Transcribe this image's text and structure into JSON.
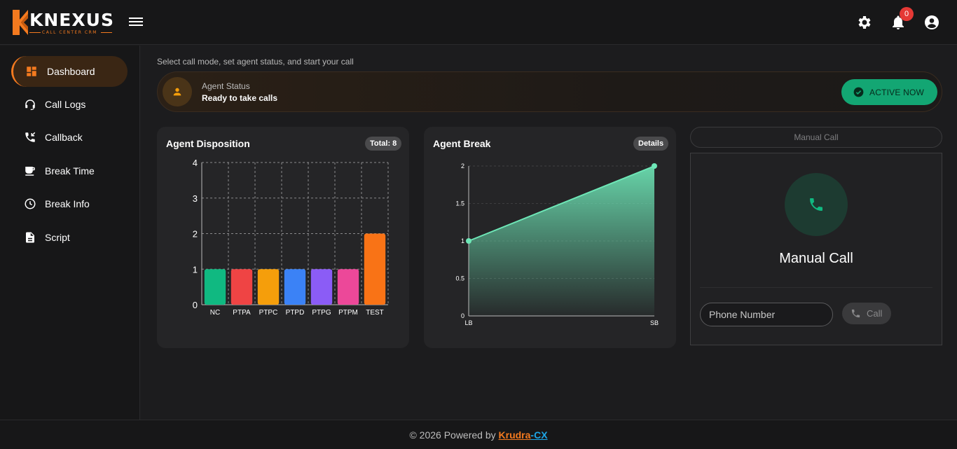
{
  "brand": {
    "name": "KNEXUS",
    "tagline": "CALL CENTER CRM",
    "accent": "#f47a1f"
  },
  "header": {
    "notifications_count": "0",
    "icons": [
      "menu-icon",
      "gear-icon",
      "bell-icon",
      "account-circle-icon"
    ]
  },
  "sidebar": {
    "items": [
      {
        "label": "Dashboard",
        "icon": "dashboard-icon",
        "active": true
      },
      {
        "label": "Call Logs",
        "icon": "headset-icon"
      },
      {
        "label": "Callback",
        "icon": "phone-callback-icon"
      },
      {
        "label": "Break Time",
        "icon": "coffee-icon"
      },
      {
        "label": "Break Info",
        "icon": "clock-icon"
      },
      {
        "label": "Script",
        "icon": "document-icon"
      }
    ]
  },
  "main": {
    "subtitle": "Select call mode, set agent status, and start your call",
    "status": {
      "label": "Agent Status",
      "value": "Ready to take calls",
      "button": "ACTIVE NOW",
      "button_color": "#13a673"
    },
    "disposition": {
      "title": "Agent Disposition",
      "pill": "Total: 8"
    },
    "break": {
      "title": "Agent Break",
      "pill": "Details"
    },
    "manual": {
      "tab_label": "Manual Call",
      "title": "Manual Call",
      "phone_placeholder": "Phone Number",
      "call_button": "Call"
    }
  },
  "footer": {
    "prefix": "© 2026 Powered by ",
    "brand_a": "Krudra",
    "dash": "-",
    "brand_b": "CX"
  },
  "chart_data": [
    {
      "type": "bar",
      "title": "Agent Disposition",
      "categories": [
        "NC",
        "PTPA",
        "PTPC",
        "PTPD",
        "PTPG",
        "PTPM",
        "TEST"
      ],
      "values": [
        1,
        1,
        1,
        1,
        1,
        1,
        2
      ],
      "colors": [
        "#10b981",
        "#ef4444",
        "#f59e0b",
        "#3b82f6",
        "#8b5cf6",
        "#ec4899",
        "#f97316"
      ],
      "ylim": [
        0,
        4
      ],
      "yticks": [
        0,
        1,
        2,
        3,
        4
      ],
      "grid": true
    },
    {
      "type": "area",
      "title": "Agent Break",
      "x": [
        "LB",
        "SB"
      ],
      "values": [
        1,
        2
      ],
      "color": "#6ee7b7",
      "ylim": [
        0,
        2
      ],
      "yticks": [
        0,
        0.5,
        1,
        1.5,
        2
      ],
      "grid": true
    }
  ]
}
